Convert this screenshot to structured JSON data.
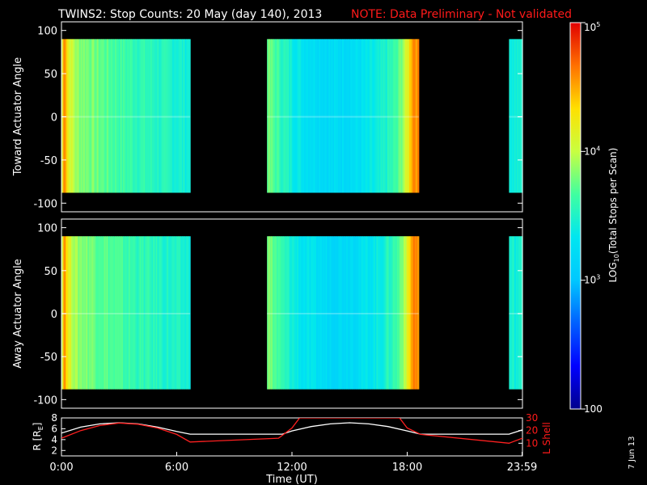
{
  "header": {
    "title": "TWINS2: Stop Counts: 20 May (day 140), 2013",
    "note": "NOTE: Data Preliminary - Not validated",
    "date_stamp": "7 Jun 13"
  },
  "colors": {
    "background": "#000000",
    "axis": "#ffffff",
    "note": "#ff1a1a",
    "r_line": "#ffffff",
    "lshell_line": "#ff2020",
    "colormap": [
      "#00008c",
      "#0000ff",
      "#0060ff",
      "#00c8ff",
      "#00e6f0",
      "#40ffa0",
      "#c8ff40",
      "#ffe000",
      "#ff7000",
      "#e00000"
    ]
  },
  "chart_data": [
    {
      "type": "heatmap",
      "id": "toward",
      "ylabel": "Toward Actuator Angle",
      "ylim": [
        -110,
        110
      ],
      "xlim": [
        0,
        24
      ],
      "yticks": [
        -100,
        -50,
        0,
        50,
        100
      ],
      "data_blocks": [
        {
          "x_start": 0.0,
          "x_end": 6.7,
          "y_range": [
            -88,
            90
          ]
        },
        {
          "x_start": 10.7,
          "x_end": 18.6,
          "y_range": [
            -88,
            90
          ]
        },
        {
          "x_start": 23.3,
          "x_end": 24.0,
          "y_range": [
            -88,
            90
          ]
        }
      ],
      "time_profile": [
        [
          0.0,
          0.62
        ],
        [
          0.15,
          0.92
        ],
        [
          0.35,
          0.72
        ],
        [
          0.8,
          0.62
        ],
        [
          1.5,
          0.6
        ],
        [
          3.0,
          0.55
        ],
        [
          4.5,
          0.52
        ],
        [
          5.5,
          0.5
        ],
        [
          6.7,
          0.48
        ],
        [
          10.7,
          0.6
        ],
        [
          11.5,
          0.52
        ],
        [
          12.5,
          0.44
        ],
        [
          14.0,
          0.4
        ],
        [
          15.5,
          0.42
        ],
        [
          16.5,
          0.46
        ],
        [
          17.5,
          0.55
        ],
        [
          18.0,
          0.7
        ],
        [
          18.3,
          0.88
        ],
        [
          18.6,
          0.85
        ],
        [
          23.3,
          0.48
        ],
        [
          24.0,
          0.48
        ]
      ]
    },
    {
      "type": "heatmap",
      "id": "away",
      "ylabel": "Away Actuator Angle",
      "ylim": [
        -110,
        110
      ],
      "xlim": [
        0,
        24
      ],
      "yticks": [
        -100,
        -50,
        0,
        50,
        100
      ],
      "data_blocks": [
        {
          "x_start": 0.0,
          "x_end": 6.7,
          "y_range": [
            -88,
            90
          ]
        },
        {
          "x_start": 10.7,
          "x_end": 18.6,
          "y_range": [
            -88,
            90
          ]
        },
        {
          "x_start": 23.3,
          "x_end": 24.0,
          "y_range": [
            -88,
            90
          ]
        }
      ],
      "time_profile": [
        [
          0.0,
          0.62
        ],
        [
          0.15,
          0.9
        ],
        [
          0.35,
          0.72
        ],
        [
          0.8,
          0.62
        ],
        [
          1.5,
          0.6
        ],
        [
          3.0,
          0.55
        ],
        [
          4.5,
          0.52
        ],
        [
          5.5,
          0.5
        ],
        [
          6.7,
          0.48
        ],
        [
          10.7,
          0.62
        ],
        [
          11.5,
          0.52
        ],
        [
          12.5,
          0.44
        ],
        [
          14.0,
          0.4
        ],
        [
          15.5,
          0.42
        ],
        [
          16.5,
          0.46
        ],
        [
          17.5,
          0.55
        ],
        [
          18.0,
          0.7
        ],
        [
          18.3,
          0.88
        ],
        [
          18.6,
          0.85
        ],
        [
          23.3,
          0.48
        ],
        [
          24.0,
          0.48
        ]
      ]
    },
    {
      "type": "line",
      "id": "orbit",
      "ylabel": "R [R",
      "ylabel_sub": "E",
      "ylabel_close": "]",
      "ylim": [
        1,
        8
      ],
      "yticks": [
        2,
        4,
        6,
        8
      ],
      "y2label": "L Shell",
      "y2lim": [
        0,
        30
      ],
      "y2ticks": [
        10,
        20,
        30
      ],
      "xlabel": "Time (UT)",
      "xlim": [
        0,
        24
      ],
      "xticks": [
        {
          "v": 0,
          "label": "0:00"
        },
        {
          "v": 6,
          "label": "6:00"
        },
        {
          "v": 12,
          "label": "12:00"
        },
        {
          "v": 18,
          "label": "18:00"
        },
        {
          "v": 23.98,
          "label": "23:59"
        }
      ],
      "series": [
        {
          "name": "R",
          "axis": "left",
          "x": [
            0,
            1,
            2,
            3,
            4,
            5,
            6,
            6.7,
            11.5,
            12,
            13,
            14,
            15,
            16,
            17,
            18,
            18.7,
            23.3,
            24
          ],
          "y": [
            5.2,
            6.3,
            6.9,
            7.1,
            6.9,
            6.3,
            5.5,
            5.0,
            5.0,
            5.6,
            6.4,
            6.9,
            7.1,
            6.9,
            6.4,
            5.6,
            5.0,
            5.0,
            5.8
          ]
        },
        {
          "name": "L Shell",
          "axis": "right",
          "x": [
            0,
            1,
            2,
            3,
            4,
            5,
            6,
            6.7,
            11.3,
            12,
            12.4,
            17.6,
            18.0,
            18.7,
            23.3,
            24
          ],
          "y": [
            14,
            20,
            24,
            26,
            25,
            22,
            17,
            11,
            14,
            22,
            30,
            30,
            22,
            17,
            10,
            14
          ]
        }
      ]
    },
    {
      "type": "colorbar",
      "id": "colorbar",
      "label_prefix": "LOG",
      "label_sub": "10",
      "label_rest": "(Total Stops per Scan)",
      "scale": "log",
      "range": [
        100,
        100000
      ],
      "tick_labels": [
        {
          "v": 100,
          "base": "100",
          "exp": ""
        },
        {
          "v": 1000,
          "base": "10",
          "exp": "3"
        },
        {
          "v": 10000,
          "base": "10",
          "exp": "4"
        },
        {
          "v": 100000,
          "base": "10",
          "exp": "5"
        }
      ]
    }
  ]
}
